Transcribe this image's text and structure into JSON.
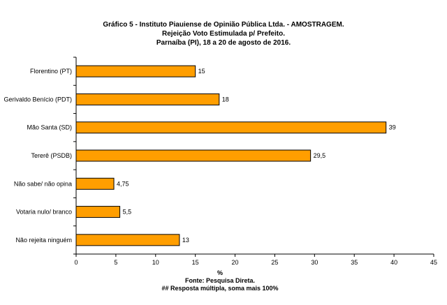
{
  "title": {
    "line1": "Gráfico    5    -    Instituto Piauiense de Opinião Pública Ltda. - AMOSTRAGEM.",
    "line2": "Rejeição Voto Estimulada p/ Prefeito.",
    "line3": "Parnaíba (PI), 18 a 20 de agosto de 2016."
  },
  "footer": {
    "source": "Fonte: Pesquisa Direta.",
    "note": "## Resposta múltipla, soma mais 100%"
  },
  "colors": {
    "bar": "#FF9E00",
    "bar_stroke": "#000000"
  },
  "chart_data": {
    "type": "bar",
    "orientation": "horizontal",
    "categories": [
      "Florentino (PT)",
      "Gerivaldo Benício (PDT)",
      "Mão Santa (SD)",
      "Tererê (PSDB)",
      "Não sabe/ não opina",
      "Votaria nulo/ branco",
      "Não rejeita ninguém"
    ],
    "values": [
      15,
      18,
      39,
      29.5,
      4.75,
      5.5,
      13
    ],
    "value_labels": [
      "15",
      "18",
      "39",
      "29,5",
      "4,75",
      "5,5",
      "13"
    ],
    "xlabel": "%",
    "xlim": [
      0,
      45
    ],
    "xticks": [
      0,
      5,
      10,
      15,
      20,
      25,
      30,
      35,
      40,
      45
    ],
    "grid": false,
    "legend": "none"
  }
}
